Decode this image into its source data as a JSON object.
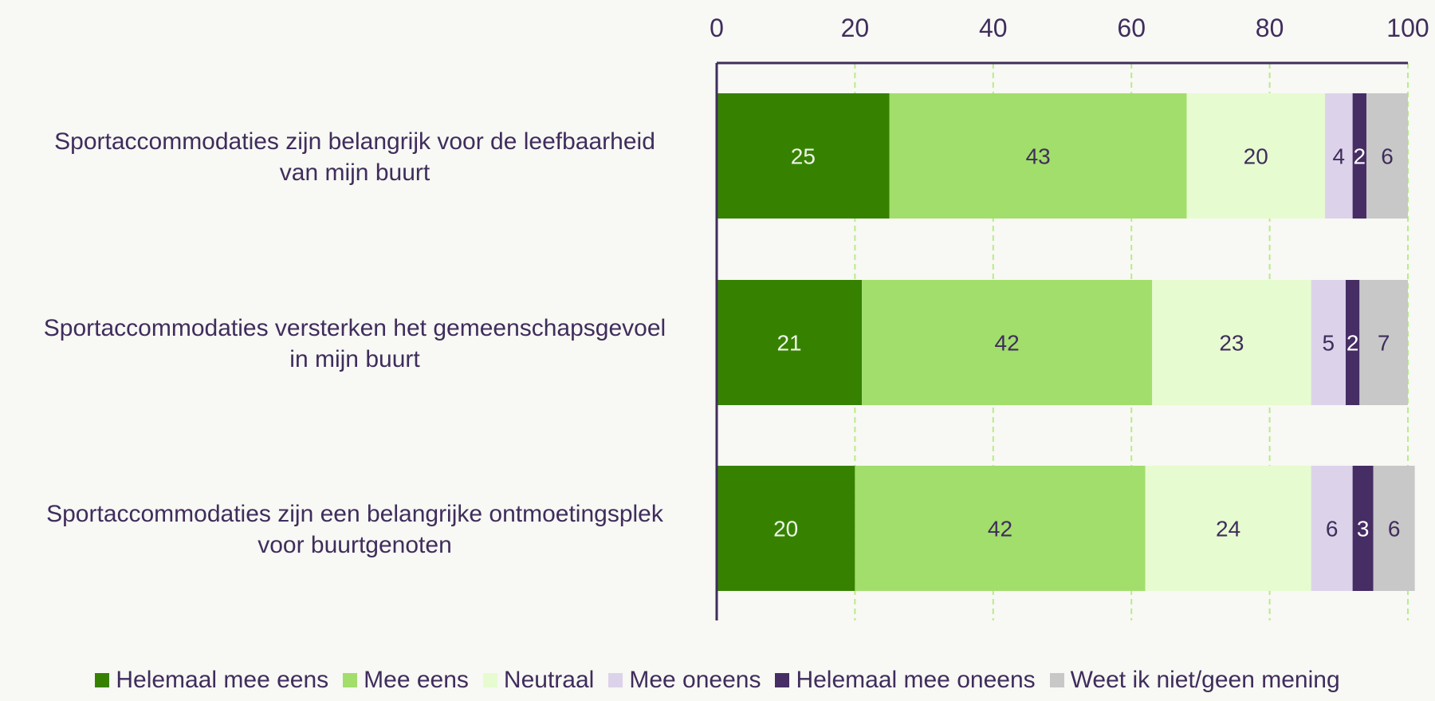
{
  "chart_data": {
    "type": "bar",
    "orientation": "horizontal",
    "stacked": true,
    "categories": [
      [
        "Sportaccommodaties zijn belangrijk voor de leefbaarheid",
        "van mijn buurt"
      ],
      [
        "Sportaccommodaties versterken het gemeenschapsgevoel",
        "in mijn buurt"
      ],
      [
        "Sportaccommodaties zijn een belangrijke ontmoetingsplek",
        "voor buurtgenoten"
      ]
    ],
    "series": [
      {
        "name": "Helemaal mee eens",
        "values": [
          25,
          21,
          20
        ],
        "color": "#368200",
        "label_color": "#eef5e6"
      },
      {
        "name": "Mee eens",
        "values": [
          43,
          42,
          42
        ],
        "color": "#a2de6b",
        "label_color": "#3f2d5c"
      },
      {
        "name": "Neutraal",
        "values": [
          20,
          23,
          24
        ],
        "color": "#e7fbd0",
        "label_color": "#3f2d5c"
      },
      {
        "name": "Mee oneens",
        "values": [
          4,
          5,
          6
        ],
        "color": "#dcd3ea",
        "label_color": "#3f2d5c"
      },
      {
        "name": "Helemaal mee oneens",
        "values": [
          2,
          2,
          3
        ],
        "color": "#462d64",
        "label_color": "#ffffff"
      },
      {
        "name": "Weet ik niet/geen mening",
        "values": [
          6,
          7,
          6
        ],
        "color": "#c8c8c8",
        "label_color": "#3f2d5c"
      }
    ],
    "xlim": [
      0,
      100
    ],
    "xticks": [
      0,
      20,
      40,
      60,
      80,
      100
    ],
    "axis_position": "top",
    "grid": true,
    "legend_position": "bottom"
  }
}
